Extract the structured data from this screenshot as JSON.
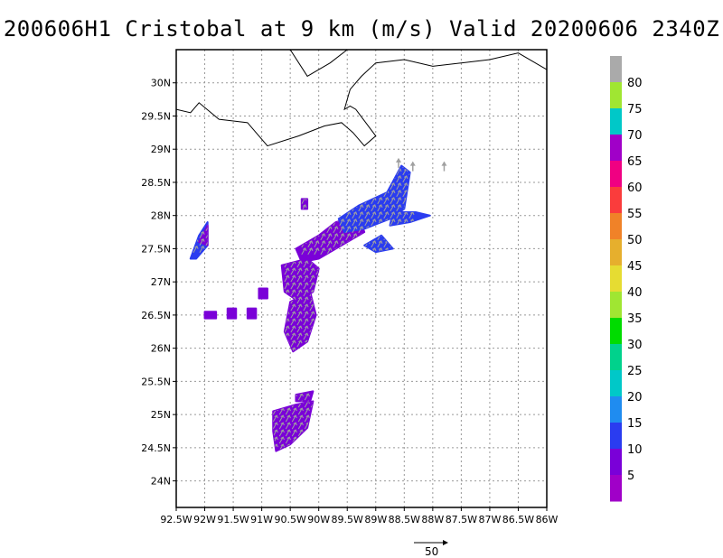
{
  "title": "200606H1 Cristobal at 9 km (m/s) Valid 20200606 2340Z",
  "map": {
    "lon_range": [
      -92.5,
      -86.0
    ],
    "lat_range": [
      23.6,
      30.5
    ],
    "grid": true,
    "lon_ticks": [
      {
        "value": -92.5,
        "label": "92.5W"
      },
      {
        "value": -92.0,
        "label": "92W"
      },
      {
        "value": -91.5,
        "label": "91.5W"
      },
      {
        "value": -91.0,
        "label": "91W"
      },
      {
        "value": -90.5,
        "label": "90.5W"
      },
      {
        "value": -90.0,
        "label": "90W"
      },
      {
        "value": -89.5,
        "label": "89.5W"
      },
      {
        "value": -89.0,
        "label": "89W"
      },
      {
        "value": -88.5,
        "label": "88.5W"
      },
      {
        "value": -88.0,
        "label": "88W"
      },
      {
        "value": -87.5,
        "label": "87.5W"
      },
      {
        "value": -87.0,
        "label": "87W"
      },
      {
        "value": -86.5,
        "label": "86.5W"
      },
      {
        "value": -86.0,
        "label": "86W"
      }
    ],
    "lat_ticks": [
      {
        "value": 24.0,
        "label": "24N"
      },
      {
        "value": 24.5,
        "label": "24.5N"
      },
      {
        "value": 25.0,
        "label": "25N"
      },
      {
        "value": 25.5,
        "label": "25.5N"
      },
      {
        "value": 26.0,
        "label": "26N"
      },
      {
        "value": 26.5,
        "label": "26.5N"
      },
      {
        "value": 27.0,
        "label": "27N"
      },
      {
        "value": 27.5,
        "label": "27.5N"
      },
      {
        "value": 28.0,
        "label": "28N"
      },
      {
        "value": 28.5,
        "label": "28.5N"
      },
      {
        "value": 29.0,
        "label": "29N"
      },
      {
        "value": 29.5,
        "label": "29.5N"
      },
      {
        "value": 30.0,
        "label": "30N"
      }
    ],
    "coastlines": [
      [
        [
          -92.5,
          29.6
        ],
        [
          -92.25,
          29.55
        ],
        [
          -92.1,
          29.7
        ],
        [
          -91.75,
          29.45
        ],
        [
          -91.25,
          29.4
        ],
        [
          -90.9,
          29.05
        ],
        [
          -90.35,
          29.2
        ],
        [
          -89.9,
          29.35
        ],
        [
          -89.6,
          29.4
        ],
        [
          -89.4,
          29.25
        ],
        [
          -89.2,
          29.05
        ],
        [
          -89.0,
          29.2
        ],
        [
          -89.35,
          29.6
        ],
        [
          -89.45,
          29.65
        ],
        [
          -89.55,
          29.6
        ],
        [
          -89.45,
          29.9
        ],
        [
          -89.25,
          30.1
        ],
        [
          -89.0,
          30.3
        ],
        [
          -88.5,
          30.35
        ],
        [
          -88.0,
          30.25
        ],
        [
          -87.5,
          30.3
        ],
        [
          -87.0,
          30.35
        ],
        [
          -86.5,
          30.45
        ],
        [
          -86.0,
          30.2
        ]
      ],
      [
        [
          -90.5,
          30.5
        ],
        [
          -90.2,
          30.1
        ],
        [
          -90.0,
          30.2
        ],
        [
          -89.8,
          30.3
        ],
        [
          -89.5,
          30.5
        ]
      ]
    ],
    "echo_blobs": [
      {
        "color": "#7a00d8",
        "points": [
          [
            -90.4,
            27.5
          ],
          [
            -90.0,
            27.7
          ],
          [
            -89.7,
            27.9
          ],
          [
            -89.3,
            28.0
          ],
          [
            -89.2,
            27.75
          ],
          [
            -89.6,
            27.55
          ],
          [
            -90.0,
            27.35
          ],
          [
            -90.3,
            27.3
          ]
        ]
      },
      {
        "color": "#2a3cf0",
        "points": [
          [
            -89.65,
            27.95
          ],
          [
            -89.3,
            28.15
          ],
          [
            -88.8,
            28.35
          ],
          [
            -88.55,
            28.75
          ],
          [
            -88.4,
            28.65
          ],
          [
            -88.5,
            28.1
          ],
          [
            -88.75,
            27.95
          ],
          [
            -89.2,
            27.8
          ],
          [
            -89.55,
            27.75
          ]
        ]
      },
      {
        "color": "#2a3cf0",
        "points": [
          [
            -88.7,
            28.05
          ],
          [
            -88.3,
            28.05
          ],
          [
            -88.05,
            28.0
          ],
          [
            -88.4,
            27.9
          ],
          [
            -88.75,
            27.85
          ]
        ]
      },
      {
        "color": "#2a3cf0",
        "points": [
          [
            -89.2,
            27.55
          ],
          [
            -88.9,
            27.7
          ],
          [
            -88.7,
            27.5
          ],
          [
            -89.0,
            27.45
          ]
        ]
      },
      {
        "color": "#7a00d8",
        "points": [
          [
            -90.65,
            27.25
          ],
          [
            -90.2,
            27.35
          ],
          [
            -90.0,
            27.2
          ],
          [
            -90.1,
            26.85
          ],
          [
            -90.35,
            26.7
          ],
          [
            -90.6,
            26.85
          ]
        ]
      },
      {
        "color": "#7a00d8",
        "points": [
          [
            -90.5,
            26.7
          ],
          [
            -90.15,
            26.85
          ],
          [
            -90.05,
            26.5
          ],
          [
            -90.2,
            26.1
          ],
          [
            -90.45,
            25.95
          ],
          [
            -90.6,
            26.25
          ]
        ]
      },
      {
        "color": "#7a00d8",
        "points": [
          [
            -90.8,
            25.05
          ],
          [
            -90.4,
            25.15
          ],
          [
            -90.1,
            25.2
          ],
          [
            -90.2,
            24.8
          ],
          [
            -90.5,
            24.55
          ],
          [
            -90.75,
            24.45
          ],
          [
            -90.8,
            24.75
          ]
        ]
      },
      {
        "color": "#7a00d8",
        "points": [
          [
            -90.4,
            25.3
          ],
          [
            -90.1,
            25.35
          ],
          [
            -90.15,
            25.2
          ],
          [
            -90.4,
            25.2
          ]
        ]
      },
      {
        "color": "#2a3cf0",
        "points": [
          [
            -92.25,
            27.35
          ],
          [
            -92.1,
            27.7
          ],
          [
            -91.95,
            27.9
          ],
          [
            -91.95,
            27.55
          ],
          [
            -92.15,
            27.35
          ]
        ]
      },
      {
        "color": "#7a00d8",
        "points": [
          [
            -92.1,
            27.6
          ],
          [
            -91.95,
            27.85
          ],
          [
            -91.95,
            27.55
          ]
        ]
      },
      {
        "color": "#7a00d8",
        "points": [
          [
            -92.0,
            26.55
          ],
          [
            -91.8,
            26.55
          ],
          [
            -91.8,
            26.45
          ],
          [
            -92.0,
            26.45
          ]
        ]
      },
      {
        "color": "#7a00d8",
        "points": [
          [
            -91.6,
            26.6
          ],
          [
            -91.45,
            26.6
          ],
          [
            -91.45,
            26.45
          ],
          [
            -91.6,
            26.45
          ]
        ]
      },
      {
        "color": "#7a00d8",
        "points": [
          [
            -91.25,
            26.6
          ],
          [
            -91.1,
            26.6
          ],
          [
            -91.1,
            26.45
          ],
          [
            -91.25,
            26.45
          ]
        ]
      },
      {
        "color": "#7a00d8",
        "points": [
          [
            -91.05,
            26.9
          ],
          [
            -90.9,
            26.9
          ],
          [
            -90.9,
            26.75
          ],
          [
            -91.05,
            26.75
          ]
        ]
      },
      {
        "color": "#7a00d8",
        "points": [
          [
            -90.3,
            28.25
          ],
          [
            -90.2,
            28.25
          ],
          [
            -90.2,
            28.1
          ],
          [
            -90.3,
            28.1
          ]
        ]
      }
    ],
    "vector_regions": [
      {
        "lon": [
          -90.3,
          -88.4
        ],
        "lat": [
          27.4,
          28.8
        ],
        "color": "#a0a0a0"
      },
      {
        "lon": [
          -90.6,
          -90.0
        ],
        "lat": [
          25.9,
          27.3
        ],
        "color": "#a0a0a0"
      },
      {
        "lon": [
          -90.8,
          -90.1
        ],
        "lat": [
          24.4,
          25.3
        ],
        "color": "#a0a0a0"
      },
      {
        "lon": [
          -92.2,
          -91.95
        ],
        "lat": [
          27.4,
          27.85
        ],
        "color": "#a0a0a0"
      }
    ],
    "isolated_arrows": [
      {
        "lon": -88.6,
        "lat": 28.8
      },
      {
        "lon": -88.35,
        "lat": 28.75
      },
      {
        "lon": -87.8,
        "lat": 28.75
      }
    ]
  },
  "colorbar": {
    "labels": [
      "5",
      "10",
      "15",
      "20",
      "25",
      "30",
      "35",
      "40",
      "45",
      "50",
      "55",
      "60",
      "65",
      "70",
      "75",
      "80"
    ],
    "colors": [
      "#a000c8",
      "#7a00d8",
      "#2a3cf0",
      "#1f8cf0",
      "#00c8c8",
      "#00d28c",
      "#00dc00",
      "#a0e632",
      "#e6dc32",
      "#e6af2d",
      "#f08228",
      "#fa3c3c",
      "#f00082",
      "#a000c8",
      "#00c8c8",
      "#a0e632",
      "#aaaaaa"
    ]
  },
  "reference_vector": {
    "value": 50,
    "label": "50"
  }
}
